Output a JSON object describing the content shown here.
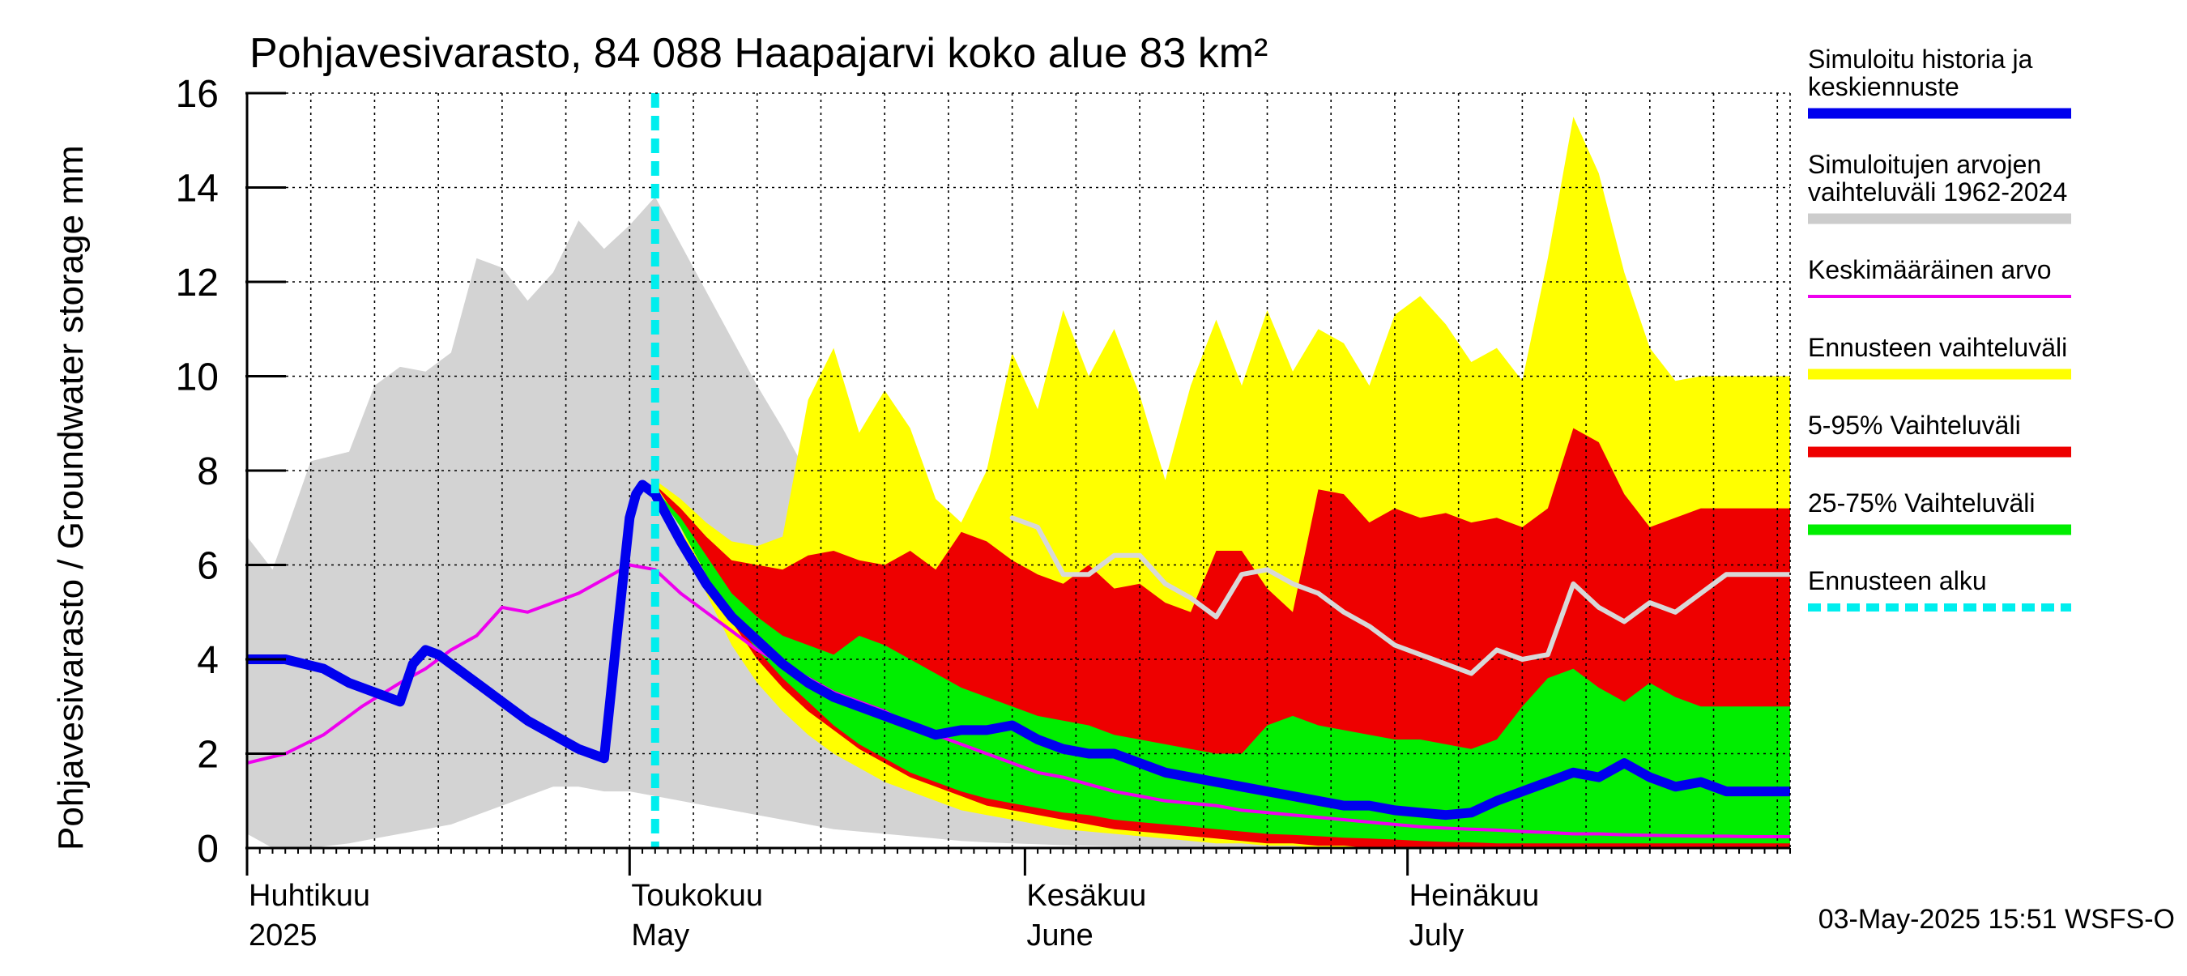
{
  "chart_data": {
    "type": "area",
    "title": "Pohjavesivarasto, 84 088 Haapajarvi koko alue 83 km²",
    "ylabel": "Pohjavesivarasto / Groundwater storage   mm",
    "ylim": [
      0,
      16
    ],
    "yticks": [
      0,
      2,
      4,
      6,
      8,
      10,
      12,
      14,
      16
    ],
    "grid": true,
    "legend_position": "right",
    "x_range": [
      "2025-04-01",
      "2025-07-31"
    ],
    "month_labels": [
      {
        "date": "2025-04-01",
        "fi": "Huhtikuu",
        "en": "2025"
      },
      {
        "date": "2025-05-01",
        "fi": "Toukokuu",
        "en": "May"
      },
      {
        "date": "2025-06-01",
        "fi": "Kesäkuu",
        "en": "June"
      },
      {
        "date": "2025-07-01",
        "fi": "Heinäkuu",
        "en": "July"
      }
    ],
    "forecast_start": "2025-05-03",
    "footer": "03-May-2025 15:51 WSFS-O",
    "legend": [
      {
        "label": "Simuloitu historia ja keskiennuste",
        "color": "#0000ee",
        "style": "thick"
      },
      {
        "label": "Simuloitujen arvojen vaihteluväli 1962-2024",
        "color": "#cccccc",
        "style": "thick"
      },
      {
        "label": "Keskimääräinen arvo",
        "color": "#ee00ee",
        "style": "thin"
      },
      {
        "label": "Ennusteen vaihteluväli",
        "color": "#ffff00",
        "style": "thick"
      },
      {
        "label": "5-95% Vaihteluväli",
        "color": "#ee0000",
        "style": "thick"
      },
      {
        "label": "25-75% Vaihteluväli",
        "color": "#00ee00",
        "style": "thick"
      },
      {
        "label": "Ennusteen alku",
        "color": "#00eeee",
        "style": "dashed"
      }
    ],
    "series": [
      {
        "name": "Simuloitujen arvojen vaihteluväli 1962-2024",
        "kind": "band",
        "color": "#d3d3d3",
        "x": [
          0,
          2,
          5,
          8,
          10,
          12,
          14,
          16,
          18,
          20,
          22,
          24,
          26,
          28,
          30,
          32,
          34,
          36,
          38,
          40,
          42,
          44,
          46,
          48,
          50,
          52,
          54,
          56,
          58,
          60,
          62,
          64,
          66,
          68,
          70,
          72,
          74,
          76,
          78,
          80,
          82,
          84,
          86,
          88,
          90,
          92,
          94,
          96,
          98,
          100,
          102,
          104,
          106,
          108,
          110,
          112,
          114,
          116,
          118,
          120,
          121
        ],
        "upper": [
          6.6,
          5.9,
          8.2,
          8.4,
          9.8,
          10.2,
          10.1,
          10.5,
          12.5,
          12.3,
          11.6,
          12.2,
          13.3,
          12.7,
          13.2,
          13.8,
          12.8,
          11.8,
          10.8,
          9.8,
          8.9,
          7.9,
          7.2,
          6.5,
          6.1,
          5.8,
          5.6,
          5.3,
          5.0,
          4.8,
          4.5,
          4.3,
          4.1,
          3.9,
          3.7,
          3.5,
          3.3,
          3.1,
          2.9,
          2.7,
          2.5,
          2.3,
          2.1,
          1.9,
          1.8,
          1.6,
          1.5,
          1.4,
          1.3,
          1.2,
          1.1,
          1.0,
          0.9,
          0.8,
          0.8,
          0.7,
          0.6,
          0.6,
          0.5,
          0.5,
          0.5
        ],
        "lower": [
          0.3,
          0.0,
          0.0,
          0.1,
          0.2,
          0.3,
          0.4,
          0.5,
          0.7,
          0.9,
          1.1,
          1.3,
          1.3,
          1.2,
          1.2,
          1.1,
          1.0,
          0.9,
          0.8,
          0.7,
          0.6,
          0.5,
          0.4,
          0.35,
          0.3,
          0.25,
          0.2,
          0.15,
          0.12,
          0.1,
          0.08,
          0.06,
          0.05,
          0.04,
          0.03,
          0.02,
          0.02,
          0.01,
          0.01,
          0.0,
          0.0,
          0.0,
          0.0,
          0.0,
          0.0,
          0.0,
          0.0,
          0.0,
          0.0,
          0.0,
          0.0,
          0.0,
          0.0,
          0.0,
          0.0,
          0.0,
          0.0,
          0.0,
          0.0,
          0.0,
          0.0
        ]
      },
      {
        "name": "Ennusteen vaihteluväli",
        "kind": "band",
        "color": "#ffff00",
        "x": [
          32,
          34,
          36,
          38,
          40,
          42,
          44,
          46,
          48,
          50,
          52,
          54,
          56,
          58,
          60,
          62,
          64,
          66,
          68,
          70,
          72,
          74,
          76,
          78,
          80,
          82,
          84,
          86,
          88,
          90,
          92,
          94,
          96,
          98,
          100,
          102,
          104,
          106,
          108,
          110,
          112,
          114,
          116,
          118,
          120,
          121
        ],
        "upper": [
          7.8,
          7.4,
          6.9,
          6.5,
          6.4,
          6.6,
          9.5,
          10.6,
          8.8,
          9.7,
          8.9,
          7.4,
          6.9,
          8.0,
          10.5,
          9.3,
          11.4,
          10.0,
          11.0,
          9.6,
          7.8,
          9.8,
          11.2,
          9.8,
          11.4,
          10.1,
          11.0,
          10.7,
          9.8,
          11.3,
          11.7,
          11.1,
          10.3,
          10.6,
          9.9,
          12.5,
          15.5,
          14.3,
          12.2,
          10.6,
          9.9,
          10.0,
          10.0,
          10.0,
          10.0,
          10.0
        ],
        "lower": [
          7.6,
          6.8,
          5.4,
          4.3,
          3.5,
          2.9,
          2.4,
          2.0,
          1.7,
          1.4,
          1.2,
          1.0,
          0.8,
          0.7,
          0.6,
          0.5,
          0.4,
          0.35,
          0.3,
          0.25,
          0.2,
          0.15,
          0.1,
          0.1,
          0.05,
          0.05,
          0.0,
          0.0,
          0.0,
          0.0,
          0.0,
          0.0,
          0.0,
          0.0,
          0.0,
          0.0,
          0.0,
          0.0,
          0.0,
          0.0,
          0.0,
          0.0,
          0.0,
          0.0,
          0.0,
          0.0
        ]
      },
      {
        "name": "5-95% Vaihteluväli",
        "kind": "band",
        "color": "#ee0000",
        "x": [
          32,
          34,
          36,
          38,
          40,
          42,
          44,
          46,
          48,
          50,
          52,
          54,
          56,
          58,
          60,
          62,
          64,
          66,
          68,
          70,
          72,
          74,
          76,
          78,
          80,
          82,
          84,
          86,
          88,
          90,
          92,
          94,
          96,
          98,
          100,
          102,
          104,
          106,
          108,
          110,
          112,
          114,
          116,
          118,
          120,
          121
        ],
        "upper": [
          7.7,
          7.2,
          6.6,
          6.1,
          6.0,
          5.9,
          6.2,
          6.3,
          6.1,
          6.0,
          6.3,
          5.9,
          6.7,
          6.5,
          6.1,
          5.8,
          5.6,
          6.0,
          5.5,
          5.6,
          5.2,
          5.0,
          6.3,
          6.3,
          5.5,
          5.0,
          7.6,
          7.5,
          6.9,
          7.2,
          7.0,
          7.1,
          6.9,
          7.0,
          6.8,
          7.2,
          8.9,
          8.6,
          7.5,
          6.8,
          7.0,
          7.2,
          7.2,
          7.2,
          7.2,
          7.2
        ],
        "lower": [
          7.7,
          6.9,
          5.8,
          4.8,
          4.0,
          3.4,
          2.9,
          2.5,
          2.1,
          1.8,
          1.5,
          1.3,
          1.1,
          0.9,
          0.8,
          0.7,
          0.6,
          0.5,
          0.4,
          0.35,
          0.3,
          0.25,
          0.2,
          0.15,
          0.1,
          0.1,
          0.05,
          0.05,
          0.0,
          0.0,
          0.0,
          0.0,
          0.0,
          0.0,
          0.0,
          0.0,
          0.0,
          0.0,
          0.0,
          0.0,
          0.0,
          0.0,
          0.0,
          0.0,
          0.0,
          0.0
        ]
      },
      {
        "name": "25-75% Vaihteluväli",
        "kind": "band",
        "color": "#00ee00",
        "x": [
          32,
          34,
          36,
          38,
          40,
          42,
          44,
          46,
          48,
          50,
          52,
          54,
          56,
          58,
          60,
          62,
          64,
          66,
          68,
          70,
          72,
          74,
          76,
          78,
          80,
          82,
          84,
          86,
          88,
          90,
          92,
          94,
          96,
          98,
          100,
          102,
          104,
          106,
          108,
          110,
          112,
          114,
          116,
          118,
          120,
          121
        ],
        "upper": [
          7.6,
          7.0,
          6.2,
          5.4,
          4.9,
          4.5,
          4.3,
          4.1,
          4.5,
          4.3,
          4.0,
          3.7,
          3.4,
          3.2,
          3.0,
          2.8,
          2.7,
          2.6,
          2.4,
          2.3,
          2.2,
          2.1,
          2.0,
          2.0,
          2.6,
          2.8,
          2.6,
          2.5,
          2.4,
          2.3,
          2.3,
          2.2,
          2.1,
          2.3,
          3.0,
          3.6,
          3.8,
          3.4,
          3.1,
          3.5,
          3.2,
          3.0,
          3.0,
          3.0,
          3.0,
          3.0
        ],
        "lower": [
          7.6,
          6.8,
          5.8,
          4.9,
          4.2,
          3.6,
          3.1,
          2.6,
          2.2,
          1.9,
          1.6,
          1.4,
          1.2,
          1.05,
          0.95,
          0.85,
          0.75,
          0.7,
          0.6,
          0.55,
          0.5,
          0.45,
          0.4,
          0.35,
          0.3,
          0.28,
          0.25,
          0.22,
          0.2,
          0.18,
          0.15,
          0.13,
          0.12,
          0.1,
          0.1,
          0.1,
          0.1,
          0.1,
          0.1,
          0.1,
          0.1,
          0.1,
          0.1,
          0.1,
          0.1,
          0.1
        ]
      },
      {
        "name": "Keskimääräinen arvo",
        "kind": "line",
        "color": "#ee00ee",
        "x": [
          0,
          3,
          6,
          9,
          12,
          14,
          16,
          18,
          20,
          22,
          24,
          26,
          28,
          30,
          32,
          34,
          36,
          38,
          40,
          42,
          44,
          46,
          48,
          50,
          52,
          54,
          56,
          58,
          60,
          62,
          64,
          66,
          68,
          70,
          72,
          74,
          76,
          78,
          80,
          82,
          84,
          86,
          88,
          90,
          92,
          94,
          96,
          98,
          100,
          102,
          104,
          106,
          108,
          110,
          112,
          114,
          116,
          118,
          120,
          121
        ],
        "y": [
          1.8,
          2.0,
          2.4,
          3.0,
          3.5,
          3.8,
          4.2,
          4.5,
          5.1,
          5.0,
          5.2,
          5.4,
          5.7,
          6.0,
          5.9,
          5.4,
          5.0,
          4.6,
          4.2,
          3.9,
          3.6,
          3.3,
          3.1,
          2.9,
          2.6,
          2.4,
          2.2,
          2.0,
          1.8,
          1.6,
          1.5,
          1.35,
          1.2,
          1.1,
          1.0,
          0.95,
          0.9,
          0.8,
          0.75,
          0.7,
          0.65,
          0.6,
          0.55,
          0.5,
          0.45,
          0.42,
          0.4,
          0.38,
          0.35,
          0.33,
          0.3,
          0.3,
          0.28,
          0.27,
          0.26,
          0.25,
          0.25,
          0.24,
          0.24,
          0.24
        ]
      },
      {
        "name": "Simuloitu median line",
        "kind": "line",
        "color": "#d8d8d8",
        "x": [
          60,
          62,
          64,
          66,
          68,
          70,
          72,
          74,
          76,
          78,
          80,
          82,
          84,
          86,
          88,
          90,
          92,
          94,
          96,
          98,
          100,
          102,
          104,
          106,
          108,
          110,
          112,
          114,
          116,
          118,
          120,
          121
        ],
        "y": [
          7.0,
          6.8,
          5.8,
          5.8,
          6.2,
          6.2,
          5.6,
          5.3,
          4.9,
          5.8,
          5.9,
          5.6,
          5.4,
          5.0,
          4.7,
          4.3,
          4.1,
          3.9,
          3.7,
          4.2,
          4.0,
          4.1,
          5.6,
          5.1,
          4.8,
          5.2,
          5.0,
          5.4,
          5.8,
          5.8,
          5.8,
          5.8
        ]
      },
      {
        "name": "Simuloitu historia ja keskiennuste",
        "kind": "line",
        "color": "#0000ee",
        "x": [
          0,
          3,
          6,
          8,
          10,
          12,
          13,
          14,
          15,
          16,
          18,
          20,
          22,
          24,
          26,
          28,
          29,
          30,
          30.5,
          31,
          32,
          33,
          34,
          36,
          38,
          40,
          42,
          44,
          46,
          48,
          50,
          52,
          54,
          56,
          58,
          60,
          62,
          64,
          66,
          68,
          70,
          72,
          74,
          76,
          78,
          80,
          82,
          84,
          86,
          88,
          90,
          92,
          94,
          96,
          98,
          100,
          102,
          104,
          106,
          108,
          110,
          112,
          114,
          116,
          118,
          120,
          121
        ],
        "y": [
          4.0,
          4.0,
          3.8,
          3.5,
          3.3,
          3.1,
          3.9,
          4.2,
          4.1,
          3.9,
          3.5,
          3.1,
          2.7,
          2.4,
          2.1,
          1.9,
          4.5,
          7.0,
          7.5,
          7.7,
          7.5,
          7.0,
          6.5,
          5.6,
          4.9,
          4.4,
          3.9,
          3.5,
          3.2,
          3.0,
          2.8,
          2.6,
          2.4,
          2.5,
          2.5,
          2.6,
          2.3,
          2.1,
          2.0,
          2.0,
          1.8,
          1.6,
          1.5,
          1.4,
          1.3,
          1.2,
          1.1,
          1.0,
          0.9,
          0.9,
          0.8,
          0.75,
          0.7,
          0.75,
          1.0,
          1.2,
          1.4,
          1.6,
          1.5,
          1.8,
          1.5,
          1.3,
          1.4,
          1.2,
          1.2,
          1.2,
          1.2
        ]
      }
    ]
  }
}
